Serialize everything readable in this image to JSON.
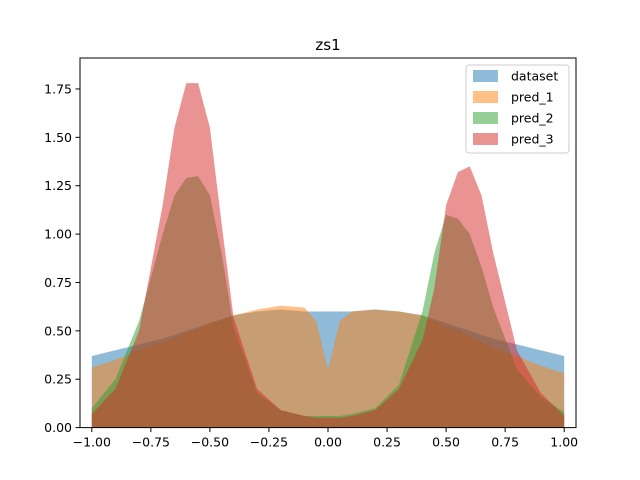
{
  "chart_data": {
    "type": "area",
    "title": "zs1",
    "xlabel": "",
    "ylabel": "",
    "xlim": [
      -1.05,
      1.05
    ],
    "ylim": [
      0,
      1.91
    ],
    "xticks": [
      -1.0,
      -0.75,
      -0.5,
      -0.25,
      0.0,
      0.25,
      0.5,
      0.75,
      1.0
    ],
    "xtick_labels": [
      "−1.00",
      "−0.75",
      "−0.50",
      "−0.25",
      "0.00",
      "0.25",
      "0.50",
      "0.75",
      "1.00"
    ],
    "yticks": [
      0.0,
      0.25,
      0.5,
      0.75,
      1.0,
      1.25,
      1.5,
      1.75
    ],
    "ytick_labels": [
      "0.00",
      "0.25",
      "0.50",
      "0.75",
      "1.00",
      "1.25",
      "1.50",
      "1.75"
    ],
    "grid": false,
    "legend_position": "top-right",
    "x": [
      -1.0,
      -0.9,
      -0.8,
      -0.7,
      -0.65,
      -0.6,
      -0.55,
      -0.5,
      -0.45,
      -0.4,
      -0.3,
      -0.2,
      -0.1,
      -0.05,
      0.0,
      0.05,
      0.1,
      0.2,
      0.3,
      0.4,
      0.45,
      0.5,
      0.55,
      0.6,
      0.65,
      0.7,
      0.8,
      0.9,
      1.0
    ],
    "series": [
      {
        "name": "dataset",
        "color": "#1f77b4",
        "values": [
          0.37,
          0.4,
          0.43,
          0.46,
          0.48,
          0.5,
          0.52,
          0.54,
          0.56,
          0.58,
          0.6,
          0.61,
          0.6,
          0.6,
          0.6,
          0.6,
          0.6,
          0.61,
          0.6,
          0.58,
          0.56,
          0.54,
          0.52,
          0.5,
          0.48,
          0.46,
          0.43,
          0.4,
          0.37
        ]
      },
      {
        "name": "pred_1",
        "color": "#ff7f0e",
        "values": [
          0.31,
          0.35,
          0.4,
          0.44,
          0.46,
          0.49,
          0.51,
          0.54,
          0.56,
          0.58,
          0.61,
          0.63,
          0.62,
          0.55,
          0.3,
          0.55,
          0.6,
          0.61,
          0.6,
          0.58,
          0.55,
          0.52,
          0.5,
          0.47,
          0.44,
          0.41,
          0.37,
          0.32,
          0.28
        ]
      },
      {
        "name": "pred_2",
        "color": "#2ca02c",
        "values": [
          0.1,
          0.25,
          0.55,
          1.0,
          1.2,
          1.29,
          1.3,
          1.2,
          0.9,
          0.52,
          0.18,
          0.09,
          0.06,
          0.06,
          0.06,
          0.06,
          0.07,
          0.1,
          0.22,
          0.6,
          0.9,
          1.1,
          1.08,
          1.0,
          0.83,
          0.62,
          0.3,
          0.16,
          0.08
        ]
      },
      {
        "name": "pred_3",
        "color": "#d62728",
        "values": [
          0.07,
          0.2,
          0.5,
          1.15,
          1.55,
          1.78,
          1.78,
          1.55,
          1.05,
          0.57,
          0.2,
          0.09,
          0.06,
          0.05,
          0.05,
          0.05,
          0.06,
          0.09,
          0.2,
          0.45,
          0.72,
          1.15,
          1.32,
          1.35,
          1.2,
          0.9,
          0.4,
          0.18,
          0.06
        ]
      }
    ]
  }
}
